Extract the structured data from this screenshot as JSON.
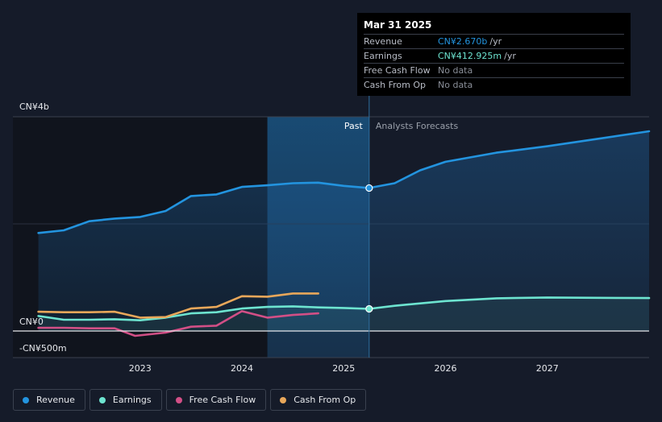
{
  "colors": {
    "background": "#151b29",
    "revenue": "#2394df",
    "earnings": "#6de4d0",
    "free_cash_flow": "#d24f86",
    "cash_from_op": "#e8a75a"
  },
  "tooltip": {
    "date": "Mar 31 2025",
    "rows": [
      {
        "label": "Revenue",
        "value": "CN¥2.670b",
        "unit": "/yr",
        "color": "#2394df"
      },
      {
        "label": "Earnings",
        "value": "CN¥412.925m",
        "unit": "/yr",
        "color": "#6de4d0"
      },
      {
        "label": "Free Cash Flow",
        "value": "No data",
        "unit": "",
        "color": ""
      },
      {
        "label": "Cash From Op",
        "value": "No data",
        "unit": "",
        "color": ""
      }
    ]
  },
  "chart_data": {
    "type": "line",
    "ylim": [
      -500,
      4000
    ],
    "y_unit": "CN¥ millions",
    "y_tick_labels": [
      {
        "value": 4000,
        "label": "CN¥4b"
      },
      {
        "value": 0,
        "label": "CN¥0"
      },
      {
        "value": -500,
        "label": "-CN¥500m"
      }
    ],
    "x_ticks": [
      {
        "value": 2023.0,
        "label": "2023"
      },
      {
        "value": 2024.0,
        "label": "2024"
      },
      {
        "value": 2025.0,
        "label": "2025"
      },
      {
        "value": 2026.0,
        "label": "2026"
      },
      {
        "value": 2027.0,
        "label": "2027"
      }
    ],
    "xlim": [
      2021.75,
      2028.0
    ],
    "past_label": "Past",
    "forecast_label": "Analysts Forecasts",
    "past_start": 2024.25,
    "forecast_start": 2025.25,
    "series": [
      {
        "name": "Revenue",
        "key": "revenue",
        "color": "#2394df",
        "points": [
          [
            2022.0,
            1830
          ],
          [
            2022.25,
            1880
          ],
          [
            2022.5,
            2050
          ],
          [
            2022.75,
            2100
          ],
          [
            2023.0,
            2130
          ],
          [
            2023.25,
            2240
          ],
          [
            2023.5,
            2520
          ],
          [
            2023.75,
            2550
          ],
          [
            2024.0,
            2690
          ],
          [
            2024.25,
            2720
          ],
          [
            2024.5,
            2760
          ],
          [
            2024.75,
            2770
          ],
          [
            2025.0,
            2710
          ],
          [
            2025.25,
            2670
          ]
        ],
        "forecast": [
          [
            2025.25,
            2670
          ],
          [
            2025.5,
            2760
          ],
          [
            2025.75,
            3000
          ],
          [
            2026.0,
            3160
          ],
          [
            2026.5,
            3330
          ],
          [
            2027.0,
            3450
          ],
          [
            2027.5,
            3590
          ],
          [
            2028.0,
            3730
          ]
        ]
      },
      {
        "name": "Earnings",
        "key": "earnings",
        "color": "#6de4d0",
        "points": [
          [
            2022.0,
            280
          ],
          [
            2022.25,
            210
          ],
          [
            2022.5,
            210
          ],
          [
            2022.75,
            220
          ],
          [
            2023.0,
            200
          ],
          [
            2023.25,
            250
          ],
          [
            2023.5,
            330
          ],
          [
            2023.75,
            350
          ],
          [
            2024.0,
            420
          ],
          [
            2024.25,
            450
          ],
          [
            2024.5,
            460
          ],
          [
            2024.75,
            440
          ],
          [
            2025.0,
            430
          ],
          [
            2025.25,
            413
          ]
        ],
        "forecast": [
          [
            2025.25,
            413
          ],
          [
            2025.5,
            470
          ],
          [
            2026.0,
            560
          ],
          [
            2026.5,
            610
          ],
          [
            2027.0,
            625
          ],
          [
            2027.5,
            620
          ],
          [
            2028.0,
            615
          ]
        ]
      },
      {
        "name": "Free Cash Flow",
        "key": "free_cash_flow",
        "color": "#d24f86",
        "points": [
          [
            2022.0,
            60
          ],
          [
            2022.25,
            60
          ],
          [
            2022.5,
            50
          ],
          [
            2022.75,
            50
          ],
          [
            2022.95,
            -90
          ],
          [
            2023.25,
            -30
          ],
          [
            2023.5,
            80
          ],
          [
            2023.75,
            100
          ],
          [
            2024.0,
            370
          ],
          [
            2024.25,
            250
          ],
          [
            2024.5,
            300
          ],
          [
            2024.75,
            330
          ]
        ],
        "forecast": []
      },
      {
        "name": "Cash From Op",
        "key": "cash_from_op",
        "color": "#e8a75a",
        "points": [
          [
            2022.0,
            360
          ],
          [
            2022.25,
            350
          ],
          [
            2022.5,
            350
          ],
          [
            2022.75,
            360
          ],
          [
            2023.0,
            250
          ],
          [
            2023.25,
            260
          ],
          [
            2023.5,
            420
          ],
          [
            2023.75,
            450
          ],
          [
            2024.0,
            650
          ],
          [
            2024.25,
            640
          ],
          [
            2024.5,
            700
          ],
          [
            2024.75,
            700
          ]
        ],
        "forecast": []
      }
    ],
    "marker": {
      "x": 2025.25,
      "values": {
        "revenue": 2670,
        "earnings": 413
      }
    }
  },
  "legend": [
    {
      "label": "Revenue",
      "key": "revenue",
      "color": "#2394df"
    },
    {
      "label": "Earnings",
      "key": "earnings",
      "color": "#6de4d0"
    },
    {
      "label": "Free Cash Flow",
      "key": "free_cash_flow",
      "color": "#d24f86"
    },
    {
      "label": "Cash From Op",
      "key": "cash_from_op",
      "color": "#e8a75a"
    }
  ]
}
